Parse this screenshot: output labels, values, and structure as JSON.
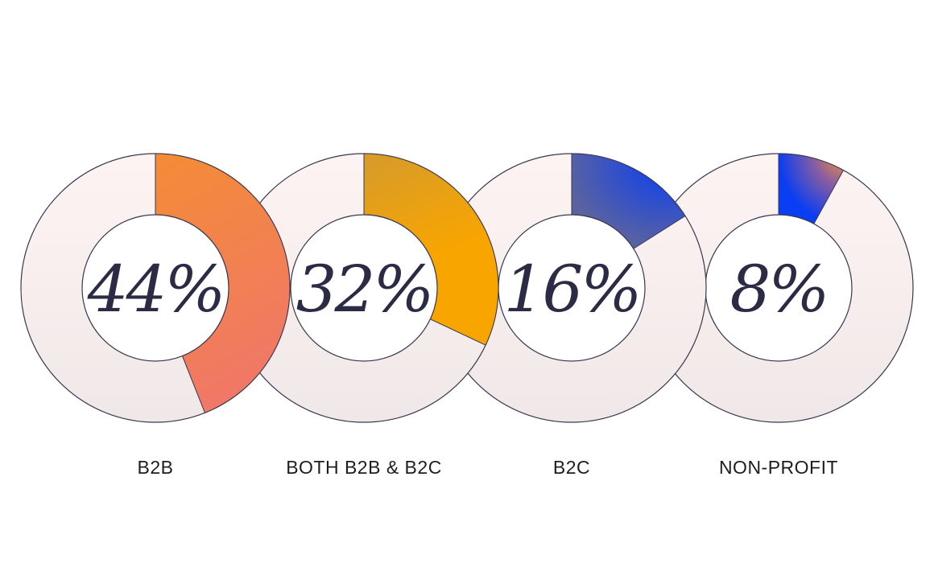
{
  "chart_data": {
    "type": "pie",
    "subtype": "donut",
    "title": "",
    "categories": [
      "B2B",
      "BOTH B2B & B2C",
      "B2C",
      "NON-PROFIT"
    ],
    "values": [
      44,
      32,
      16,
      8
    ],
    "unit": "%",
    "value_labels": [
      "44%",
      "32%",
      "16%",
      "8%"
    ],
    "colors": [
      {
        "from": "#f48c35",
        "to": "#f07866"
      },
      {
        "from": "#d89c28",
        "to": "#f9a500"
      },
      {
        "from": "#0a3ef2",
        "to": "#5a62a0"
      },
      {
        "from": "#0a3ef2",
        "to": "#f99a2a"
      }
    ],
    "remainder_color": "#fbf1ef",
    "legend": "labels below each donut"
  },
  "donuts": [
    {
      "value": "44%",
      "label": "B2B"
    },
    {
      "value": "32%",
      "label": "BOTH B2B & B2C"
    },
    {
      "value": "16%",
      "label": "B2C"
    },
    {
      "value": "8%",
      "label": "NON-PROFIT"
    }
  ]
}
